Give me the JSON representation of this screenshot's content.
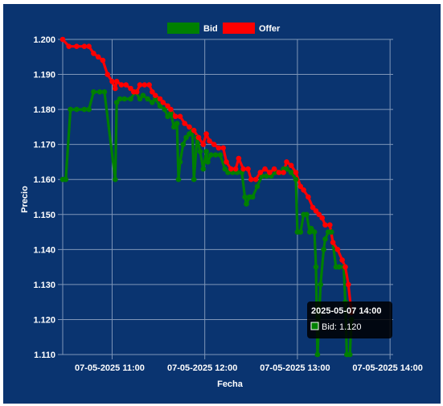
{
  "chart_data": {
    "type": "line",
    "xlabel": "Fecha",
    "ylabel": "Precio",
    "ylim": [
      1.11,
      1.2
    ],
    "y_ticks": [
      "1.200",
      "1.190",
      "1.180",
      "1.170",
      "1.160",
      "1.150",
      "1.140",
      "1.130",
      "1.120",
      "1.110"
    ],
    "x_range": [
      "07-05-2025 10:28",
      "07-05-2025 14:02"
    ],
    "x_ticks": [
      "07-05-2025 11:00",
      "07-05-2025 12:00",
      "07-05-2025 13:00",
      "07-05-2025 14:00"
    ],
    "grid": true,
    "legend_position": "top",
    "series": [
      {
        "name": "Bid",
        "color": "#008000",
        "points": [
          [
            "10:28",
            1.16
          ],
          [
            "10:30",
            1.16
          ],
          [
            "10:33",
            1.18
          ],
          [
            "10:37",
            1.18
          ],
          [
            "10:42",
            1.18
          ],
          [
            "10:45",
            1.18
          ],
          [
            "10:48",
            1.185
          ],
          [
            "10:52",
            1.185
          ],
          [
            "10:55",
            1.185
          ],
          [
            "11:02",
            1.16
          ],
          [
            "11:03",
            1.182
          ],
          [
            "11:05",
            1.183
          ],
          [
            "11:08",
            1.183
          ],
          [
            "11:12",
            1.183
          ],
          [
            "11:15",
            1.185
          ],
          [
            "11:18",
            1.183
          ],
          [
            "11:20",
            1.184
          ],
          [
            "11:23",
            1.183
          ],
          [
            "11:26",
            1.182
          ],
          [
            "11:28",
            1.183
          ],
          [
            "11:31",
            1.181
          ],
          [
            "11:34",
            1.18
          ],
          [
            "11:36",
            1.178
          ],
          [
            "11:38",
            1.179
          ],
          [
            "11:40",
            1.175
          ],
          [
            "11:42",
            1.176
          ],
          [
            "11:43",
            1.16
          ],
          [
            "11:44",
            1.165
          ],
          [
            "11:46",
            1.17
          ],
          [
            "11:48",
            1.172
          ],
          [
            "11:50",
            1.173
          ],
          [
            "11:52",
            1.174
          ],
          [
            "11:53",
            1.16
          ],
          [
            "11:55",
            1.172
          ],
          [
            "11:57",
            1.168
          ],
          [
            "11:59",
            1.163
          ],
          [
            "12:01",
            1.168
          ],
          [
            "12:02",
            1.165
          ],
          [
            "12:04",
            1.167
          ],
          [
            "12:07",
            1.167
          ],
          [
            "12:10",
            1.167
          ],
          [
            "12:13",
            1.163
          ],
          [
            "12:15",
            1.162
          ],
          [
            "12:18",
            1.162
          ],
          [
            "12:21",
            1.162
          ],
          [
            "12:24",
            1.162
          ],
          [
            "12:26",
            1.155
          ],
          [
            "12:27",
            1.153
          ],
          [
            "12:29",
            1.155
          ],
          [
            "12:31",
            1.155
          ],
          [
            "12:34",
            1.158
          ],
          [
            "12:37",
            1.161
          ],
          [
            "12:40",
            1.161
          ],
          [
            "12:43",
            1.161
          ],
          [
            "12:46",
            1.162
          ],
          [
            "12:49",
            1.162
          ],
          [
            "12:51",
            1.163
          ],
          [
            "12:53",
            1.163
          ],
          [
            "12:56",
            1.162
          ],
          [
            "12:59",
            1.16
          ],
          [
            "13:00",
            1.145
          ],
          [
            "13:02",
            1.145
          ],
          [
            "13:04",
            1.15
          ],
          [
            "13:06",
            1.15
          ],
          [
            "13:08",
            1.145
          ],
          [
            "13:09",
            1.146
          ],
          [
            "13:11",
            1.145
          ],
          [
            "13:12",
            1.135
          ],
          [
            "13:13",
            1.11
          ],
          [
            "13:15",
            1.13
          ],
          [
            "13:17",
            1.14
          ],
          [
            "13:18",
            1.143
          ],
          [
            "13:20",
            1.145
          ],
          [
            "13:22",
            1.145
          ],
          [
            "13:25",
            1.135
          ],
          [
            "13:27",
            1.135
          ],
          [
            "13:30",
            1.135
          ],
          [
            "13:31",
            1.125
          ],
          [
            "13:32",
            1.11
          ],
          [
            "13:34",
            1.11
          ],
          [
            "13:35",
            1.12
          ]
        ]
      },
      {
        "name": "Offer",
        "color": "#ff0000",
        "points": [
          [
            "10:28",
            1.2
          ],
          [
            "10:32",
            1.198
          ],
          [
            "10:37",
            1.198
          ],
          [
            "10:42",
            1.198
          ],
          [
            "10:45",
            1.198
          ],
          [
            "10:48",
            1.196
          ],
          [
            "10:51",
            1.195
          ],
          [
            "10:54",
            1.194
          ],
          [
            "10:57",
            1.19
          ],
          [
            "11:00",
            1.188
          ],
          [
            "11:02",
            1.186
          ],
          [
            "11:03",
            1.188
          ],
          [
            "11:06",
            1.187
          ],
          [
            "11:09",
            1.187
          ],
          [
            "11:12",
            1.186
          ],
          [
            "11:14",
            1.185
          ],
          [
            "11:16",
            1.185
          ],
          [
            "11:18",
            1.187
          ],
          [
            "11:21",
            1.187
          ],
          [
            "11:24",
            1.187
          ],
          [
            "11:26",
            1.185
          ],
          [
            "11:28",
            1.184
          ],
          [
            "11:31",
            1.183
          ],
          [
            "11:33",
            1.182
          ],
          [
            "11:36",
            1.181
          ],
          [
            "11:38",
            1.18
          ],
          [
            "11:41",
            1.178
          ],
          [
            "11:44",
            1.178
          ],
          [
            "11:47",
            1.176
          ],
          [
            "11:50",
            1.175
          ],
          [
            "11:53",
            1.174
          ],
          [
            "11:56",
            1.172
          ],
          [
            "11:59",
            1.17
          ],
          [
            "12:01",
            1.173
          ],
          [
            "12:03",
            1.171
          ],
          [
            "12:06",
            1.17
          ],
          [
            "12:09",
            1.169
          ],
          [
            "12:12",
            1.169
          ],
          [
            "12:14",
            1.165
          ],
          [
            "12:17",
            1.163
          ],
          [
            "12:20",
            1.163
          ],
          [
            "12:22",
            1.166
          ],
          [
            "12:25",
            1.163
          ],
          [
            "12:28",
            1.163
          ],
          [
            "12:30",
            1.16
          ],
          [
            "12:33",
            1.16
          ],
          [
            "12:36",
            1.162
          ],
          [
            "12:39",
            1.163
          ],
          [
            "12:42",
            1.162
          ],
          [
            "12:45",
            1.163
          ],
          [
            "12:48",
            1.162
          ],
          [
            "12:51",
            1.162
          ],
          [
            "12:53",
            1.165
          ],
          [
            "12:56",
            1.164
          ],
          [
            "12:59",
            1.162
          ],
          [
            "13:02",
            1.158
          ],
          [
            "13:04",
            1.157
          ],
          [
            "13:07",
            1.155
          ],
          [
            "13:10",
            1.152
          ],
          [
            "13:12",
            1.151
          ],
          [
            "13:14",
            1.15
          ],
          [
            "13:16",
            1.149
          ],
          [
            "13:18",
            1.147
          ],
          [
            "13:21",
            1.147
          ],
          [
            "13:23",
            1.142
          ],
          [
            "13:26",
            1.14
          ],
          [
            "13:29",
            1.137
          ],
          [
            "13:31",
            1.135
          ],
          [
            "13:33",
            1.13
          ],
          [
            "13:35",
            1.122
          ]
        ]
      }
    ],
    "tooltip": {
      "title": "2025-05-07 14:00",
      "label": "Bid: 1.120",
      "series": "Bid"
    }
  }
}
